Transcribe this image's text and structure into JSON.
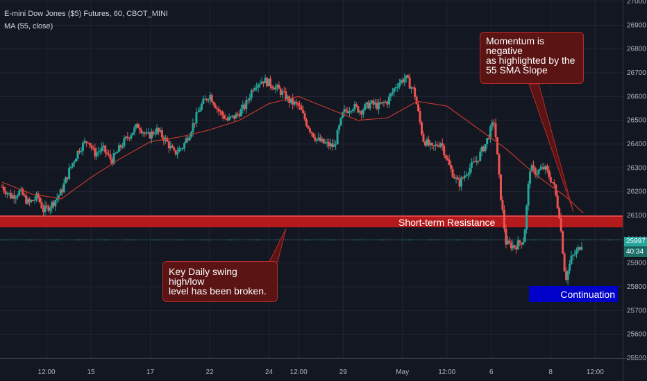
{
  "header": {
    "symbol_line": "E-mini Dow Jones ($5) Futures, 60, CBOT_MINI",
    "indicator_line": "MA (55, close)"
  },
  "annotations": {
    "resistance_label": "Short-term Resistance",
    "continuation_label": "Continuation",
    "momentum_callout": [
      "Momentum is negative",
      "as highlighted by the",
      "55 SMA Slope"
    ],
    "swing_callout": [
      "Key Daily swing high/low",
      "level has been broken."
    ]
  },
  "price_axis": {
    "current_price": "25997",
    "countdown": "40:34"
  },
  "colors": {
    "background": "#131722",
    "grid": "#222633",
    "candle_up": "#26a69a",
    "candle_down": "#ef5350",
    "ma_line": "#c0392b",
    "resistance_band": "#d11a1a",
    "callout_fill": "#5a1414",
    "callout_border": "#b52b2b",
    "continuation_fill": "#0000c8",
    "last_price_line": "#26a69a"
  },
  "chart_data": {
    "type": "candlestick",
    "title": "E-mini Dow Jones ($5) Futures, 60, CBOT_MINI",
    "ylim": [
      25500,
      27000
    ],
    "y_ticks": [
      25500,
      25600,
      25700,
      25800,
      25900,
      26000,
      26100,
      26200,
      26300,
      26400,
      26500,
      26600,
      26700,
      26800,
      26900,
      27000
    ],
    "x_tick_labels": [
      {
        "label": "12:00",
        "t": 1.5
      },
      {
        "label": "15",
        "t": 3.0
      },
      {
        "label": "17",
        "t": 5.0
      },
      {
        "label": "22",
        "t": 7.0
      },
      {
        "label": "24",
        "t": 9.0
      },
      {
        "label": "12:00",
        "t": 10.0
      },
      {
        "label": "29",
        "t": 11.5
      },
      {
        "label": "May",
        "t": 13.5
      },
      {
        "label": "12:00",
        "t": 15.0
      },
      {
        "label": "6",
        "t": 16.5
      },
      {
        "label": "8",
        "t": 18.5
      },
      {
        "label": "12:00",
        "t": 20.0
      }
    ],
    "price_path": [
      [
        0.0,
        26220
      ],
      [
        0.3,
        26180
      ],
      [
        0.6,
        26200
      ],
      [
        0.9,
        26150
      ],
      [
        1.2,
        26180
      ],
      [
        1.4,
        26120
      ],
      [
        1.7,
        26150
      ],
      [
        2.0,
        26200
      ],
      [
        2.3,
        26300
      ],
      [
        2.6,
        26380
      ],
      [
        2.9,
        26420
      ],
      [
        3.1,
        26360
      ],
      [
        3.4,
        26380
      ],
      [
        3.7,
        26330
      ],
      [
        4.0,
        26390
      ],
      [
        4.3,
        26440
      ],
      [
        4.6,
        26480
      ],
      [
        4.9,
        26430
      ],
      [
        5.2,
        26460
      ],
      [
        5.5,
        26420
      ],
      [
        5.8,
        26360
      ],
      [
        6.1,
        26390
      ],
      [
        6.4,
        26470
      ],
      [
        6.7,
        26560
      ],
      [
        7.0,
        26610
      ],
      [
        7.3,
        26540
      ],
      [
        7.6,
        26500
      ],
      [
        7.9,
        26520
      ],
      [
        8.2,
        26560
      ],
      [
        8.5,
        26650
      ],
      [
        8.8,
        26670
      ],
      [
        9.1,
        26650
      ],
      [
        9.4,
        26620
      ],
      [
        9.7,
        26580
      ],
      [
        10.0,
        26560
      ],
      [
        10.3,
        26480
      ],
      [
        10.6,
        26420
      ],
      [
        10.9,
        26400
      ],
      [
        11.2,
        26390
      ],
      [
        11.5,
        26530
      ],
      [
        11.8,
        26560
      ],
      [
        12.1,
        26540
      ],
      [
        12.4,
        26570
      ],
      [
        12.7,
        26560
      ],
      [
        13.0,
        26580
      ],
      [
        13.3,
        26650
      ],
      [
        13.6,
        26680
      ],
      [
        13.9,
        26620
      ],
      [
        14.2,
        26420
      ],
      [
        14.5,
        26380
      ],
      [
        14.8,
        26410
      ],
      [
        15.1,
        26300
      ],
      [
        15.4,
        26230
      ],
      [
        15.7,
        26290
      ],
      [
        16.0,
        26330
      ],
      [
        16.3,
        26400
      ],
      [
        16.6,
        26500
      ],
      [
        16.8,
        26200
      ],
      [
        17.0,
        25980
      ],
      [
        17.3,
        25970
      ],
      [
        17.6,
        26000
      ],
      [
        17.8,
        26300
      ],
      [
        18.0,
        26280
      ],
      [
        18.3,
        26300
      ],
      [
        18.6,
        26230
      ],
      [
        18.8,
        26100
      ],
      [
        19.0,
        25830
      ],
      [
        19.2,
        25920
      ],
      [
        19.4,
        25950
      ],
      [
        19.6,
        25997
      ]
    ],
    "sma_55": [
      [
        0.0,
        26240
      ],
      [
        1.0,
        26190
      ],
      [
        2.0,
        26170
      ],
      [
        3.0,
        26260
      ],
      [
        4.0,
        26340
      ],
      [
        5.0,
        26410
      ],
      [
        6.0,
        26430
      ],
      [
        7.0,
        26460
      ],
      [
        8.0,
        26500
      ],
      [
        9.0,
        26570
      ],
      [
        10.0,
        26600
      ],
      [
        11.0,
        26550
      ],
      [
        12.0,
        26500
      ],
      [
        13.0,
        26510
      ],
      [
        14.0,
        26580
      ],
      [
        15.0,
        26560
      ],
      [
        16.0,
        26470
      ],
      [
        17.0,
        26380
      ],
      [
        18.0,
        26270
      ],
      [
        19.0,
        26180
      ],
      [
        19.6,
        26110
      ]
    ],
    "resistance_zone": [
      26050,
      26100
    ],
    "last_price": 25997
  }
}
